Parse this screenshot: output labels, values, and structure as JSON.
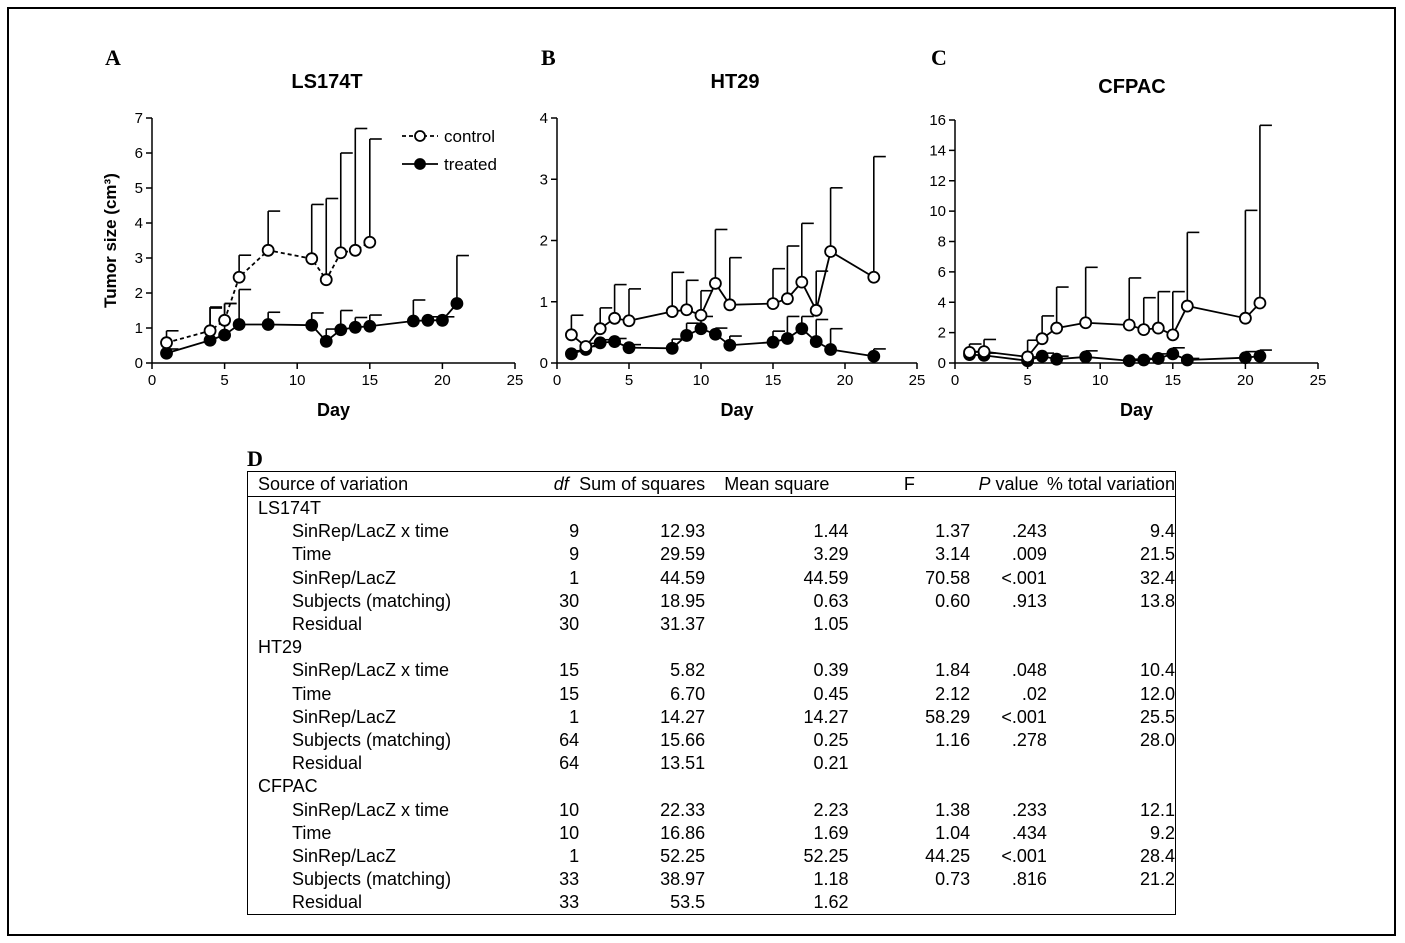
{
  "panels": {
    "A": "A",
    "B": "B",
    "C": "C",
    "D": "D"
  },
  "chart_data": [
    {
      "type": "line",
      "title": "LS174T",
      "xlabel": "Day",
      "ylabel": "Tumor size (cm³)",
      "xlim": [
        0,
        25
      ],
      "ylim": [
        0,
        7
      ],
      "xticks": [
        0,
        5,
        10,
        15,
        20,
        25
      ],
      "yticks": [
        0,
        1,
        2,
        3,
        4,
        5,
        6,
        7
      ],
      "legend": {
        "position": "top-right",
        "labels": [
          "control",
          "treated"
        ]
      },
      "series": [
        {
          "name": "control",
          "marker": "open-circle",
          "line": "dashed",
          "x": [
            1,
            4,
            5,
            6,
            8,
            11,
            12,
            13,
            14,
            15
          ],
          "y": [
            0.58,
            0.92,
            1.22,
            2.45,
            3.22,
            2.98,
            2.38,
            3.15,
            3.22,
            3.45
          ],
          "err": [
            0.34,
            0.65,
            0.48,
            0.63,
            1.12,
            1.55,
            2.32,
            2.85,
            3.48,
            2.95
          ]
        },
        {
          "name": "treated",
          "marker": "filled-circle",
          "line": "solid",
          "x": [
            1,
            4,
            5,
            6,
            8,
            11,
            12,
            13,
            14,
            15,
            18,
            19,
            20,
            21
          ],
          "y": [
            0.28,
            0.65,
            0.8,
            1.1,
            1.1,
            1.08,
            0.62,
            0.95,
            1.02,
            1.05,
            1.2,
            1.22,
            1.22,
            1.7
          ],
          "err": [
            0.12,
            0.95,
            0.9,
            1.0,
            0.35,
            0.35,
            0.35,
            0.55,
            0.28,
            0.32,
            0.6,
            0.1,
            0.1,
            1.37
          ]
        }
      ]
    },
    {
      "type": "line",
      "title": "HT29",
      "xlabel": "Day",
      "ylabel": "",
      "xlim": [
        0,
        25
      ],
      "ylim": [
        0,
        4
      ],
      "xticks": [
        0,
        5,
        10,
        15,
        20,
        25
      ],
      "yticks": [
        0,
        1,
        2,
        3,
        4
      ],
      "series": [
        {
          "name": "control",
          "marker": "open-circle",
          "line": "solid",
          "x": [
            1,
            2,
            3,
            4,
            5,
            8,
            9,
            10,
            11,
            12,
            15,
            16,
            17,
            18,
            19,
            22
          ],
          "y": [
            0.46,
            0.27,
            0.56,
            0.73,
            0.69,
            0.84,
            0.87,
            0.78,
            1.3,
            0.95,
            0.97,
            1.05,
            1.32,
            0.86,
            1.82,
            1.4
          ],
          "err": [
            0.32,
            0.05,
            0.34,
            0.55,
            0.52,
            0.64,
            0.48,
            0.4,
            0.88,
            0.77,
            0.57,
            0.86,
            0.96,
            0.64,
            1.04,
            1.97
          ]
        },
        {
          "name": "treated",
          "marker": "filled-circle",
          "line": "solid",
          "x": [
            1,
            2,
            3,
            4,
            5,
            8,
            9,
            10,
            11,
            12,
            15,
            16,
            17,
            18,
            19,
            22
          ],
          "y": [
            0.15,
            0.22,
            0.33,
            0.35,
            0.25,
            0.24,
            0.45,
            0.56,
            0.47,
            0.29,
            0.34,
            0.4,
            0.56,
            0.35,
            0.22,
            0.11
          ],
          "err": [
            0.05,
            0.05,
            0.05,
            0.05,
            0.05,
            0.15,
            0.2,
            0.2,
            0.1,
            0.15,
            0.18,
            0.36,
            0.2,
            0.36,
            0.34,
            0.12
          ]
        }
      ]
    },
    {
      "type": "line",
      "title": "CFPAC",
      "xlabel": "Day",
      "ylabel": "",
      "xlim": [
        0,
        25
      ],
      "ylim": [
        0,
        16
      ],
      "xticks": [
        0,
        5,
        10,
        15,
        20,
        25
      ],
      "yticks": [
        0,
        2,
        4,
        6,
        8,
        10,
        12,
        14,
        16
      ],
      "series": [
        {
          "name": "control",
          "marker": "open-circle",
          "line": "solid",
          "x": [
            1,
            2,
            5,
            6,
            7,
            9,
            12,
            13,
            14,
            15,
            16,
            20,
            21
          ],
          "y": [
            0.7,
            0.75,
            0.4,
            1.6,
            2.3,
            2.65,
            2.5,
            2.2,
            2.3,
            1.85,
            3.75,
            2.95,
            3.95
          ],
          "err": [
            0.55,
            0.8,
            1.1,
            1.5,
            2.7,
            3.65,
            3.1,
            2.1,
            2.4,
            2.85,
            4.85,
            7.1,
            11.7
          ]
        },
        {
          "name": "treated",
          "marker": "filled-circle",
          "line": "solid",
          "x": [
            1,
            2,
            5,
            6,
            7,
            9,
            12,
            13,
            14,
            15,
            16,
            20,
            21
          ],
          "y": [
            0.55,
            0.5,
            0.15,
            0.45,
            0.25,
            0.4,
            0.15,
            0.2,
            0.3,
            0.6,
            0.2,
            0.35,
            0.45
          ],
          "err": [
            0.2,
            0.15,
            0.25,
            0.2,
            0.2,
            0.4,
            0.1,
            0.1,
            0.3,
            0.4,
            0.1,
            0.4,
            0.4
          ]
        }
      ]
    }
  ],
  "table": {
    "headers": [
      "Source of variation",
      "df",
      "Sum of squares",
      "Mean square",
      "F",
      "P value",
      "% total variation"
    ],
    "rows": [
      {
        "group": true,
        "cells": [
          "LS174T",
          "",
          "",
          "",
          "",
          "",
          ""
        ]
      },
      {
        "group": false,
        "cells": [
          "SinRep/LacZ x time",
          "9",
          "12.93",
          "1.44",
          "1.37",
          ".243",
          "9.4"
        ]
      },
      {
        "group": false,
        "cells": [
          "Time",
          "9",
          "29.59",
          "3.29",
          "3.14",
          ".009",
          "21.5"
        ]
      },
      {
        "group": false,
        "cells": [
          "SinRep/LacZ",
          "1",
          "44.59",
          "44.59",
          "70.58",
          "<.001",
          "32.4"
        ]
      },
      {
        "group": false,
        "cells": [
          "Subjects (matching)",
          "30",
          "18.95",
          "0.63",
          "0.60",
          ".913",
          "13.8"
        ]
      },
      {
        "group": false,
        "cells": [
          "Residual",
          "30",
          "31.37",
          "1.05",
          "",
          "",
          ""
        ]
      },
      {
        "group": true,
        "cells": [
          "HT29",
          "",
          "",
          "",
          "",
          "",
          ""
        ]
      },
      {
        "group": false,
        "cells": [
          "SinRep/LacZ x time",
          "15",
          "5.82",
          "0.39",
          "1.84",
          ".048",
          "10.4"
        ]
      },
      {
        "group": false,
        "cells": [
          "Time",
          "15",
          "6.70",
          "0.45",
          "2.12",
          ".02",
          "12.0"
        ]
      },
      {
        "group": false,
        "cells": [
          "SinRep/LacZ",
          "1",
          "14.27",
          "14.27",
          "58.29",
          "<.001",
          "25.5"
        ]
      },
      {
        "group": false,
        "cells": [
          "Subjects (matching)",
          "64",
          "15.66",
          "0.25",
          "1.16",
          ".278",
          "28.0"
        ]
      },
      {
        "group": false,
        "cells": [
          "Residual",
          "64",
          "13.51",
          "0.21",
          "",
          "",
          ""
        ]
      },
      {
        "group": true,
        "cells": [
          "CFPAC",
          "",
          "",
          "",
          "",
          "",
          ""
        ]
      },
      {
        "group": false,
        "cells": [
          "SinRep/LacZ x time",
          "10",
          "22.33",
          "2.23",
          "1.38",
          ".233",
          "12.1"
        ]
      },
      {
        "group": false,
        "cells": [
          "Time",
          "10",
          "16.86",
          "1.69",
          "1.04",
          ".434",
          "9.2"
        ]
      },
      {
        "group": false,
        "cells": [
          "SinRep/LacZ",
          "1",
          "52.25",
          "52.25",
          "44.25",
          "<.001",
          "28.4"
        ]
      },
      {
        "group": false,
        "cells": [
          "Subjects (matching)",
          "33",
          "38.97",
          "1.18",
          "0.73",
          ".816",
          "21.2"
        ]
      },
      {
        "group": false,
        "cells": [
          "Residual",
          "33",
          "53.5",
          "1.62",
          "",
          "",
          ""
        ]
      }
    ]
  }
}
